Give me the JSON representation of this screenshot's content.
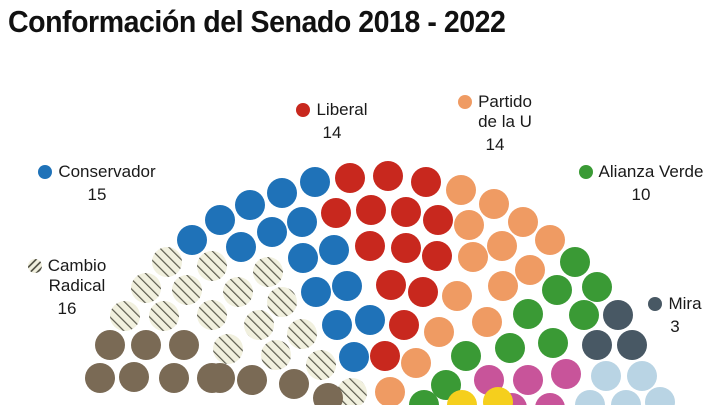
{
  "chart_data": {
    "type": "parliament",
    "title": "Conformación del Senado 2018 - 2022",
    "parties": [
      {
        "name": "Liberal",
        "name_lines": [
          "Liberal"
        ],
        "seats": 14,
        "color": "#c8281e"
      },
      {
        "name": "Partido de la U",
        "name_lines": [
          "Partido",
          "de la U"
        ],
        "seats": 14,
        "color": "#ef9b63"
      },
      {
        "name": "Conservador",
        "name_lines": [
          "Conservador"
        ],
        "seats": 15,
        "color": "#1f72b8"
      },
      {
        "name": "Alianza Verde",
        "name_lines": [
          "Alianza Verde"
        ],
        "seats": 10,
        "color": "#3a9a35"
      },
      {
        "name": "Cambio Radical",
        "name_lines": [
          "Cambio",
          "Radical"
        ],
        "seats": 16,
        "color": "#f1f0de",
        "pattern": "diagonal-stripes"
      },
      {
        "name": "Mira",
        "name_lines": [
          "Mira"
        ],
        "seats": 3,
        "color": "#485864"
      }
    ],
    "unlabeled_colors": [
      "#7a6a55",
      "#c8549a",
      "#b9d4e4",
      "#f5cf1d"
    ]
  }
}
